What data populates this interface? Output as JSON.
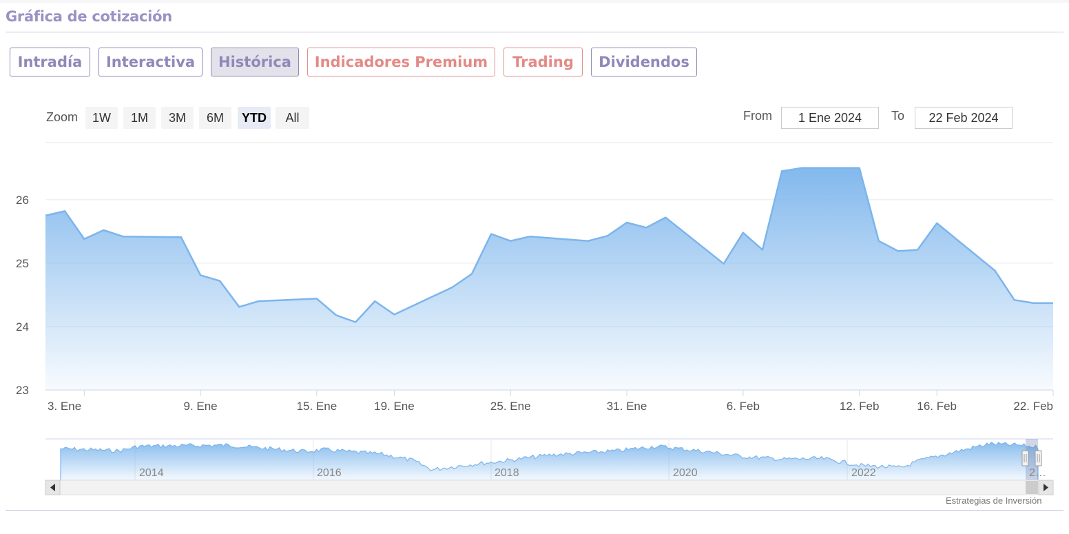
{
  "header": {
    "title": "Gráfica de cotización"
  },
  "tabs": [
    {
      "label": "Intradía",
      "color": "purple",
      "active": false
    },
    {
      "label": "Interactiva",
      "color": "purple",
      "active": false
    },
    {
      "label": "Histórica",
      "color": "purple",
      "active": true
    },
    {
      "label": "Indicadores Premium",
      "color": "red",
      "active": false
    },
    {
      "label": "Trading",
      "color": "red",
      "active": false
    },
    {
      "label": "Dividendos",
      "color": "purple",
      "active": false
    }
  ],
  "range_selector": {
    "zoom_label": "Zoom",
    "buttons": [
      "1W",
      "1M",
      "3M",
      "6M",
      "YTD",
      "All"
    ],
    "selected": "YTD",
    "from_label": "From",
    "from_value": "1 Ene 2024",
    "to_label": "To",
    "to_value": "22 Feb 2024"
  },
  "colors": {
    "series": "#7cb5ec",
    "accent_purple": "#8f88b9",
    "accent_red": "#e38a86"
  },
  "chart_data": {
    "type": "area",
    "ylim": [
      23,
      26.9
    ],
    "yticks": [
      23,
      24,
      25,
      26
    ],
    "xlim": [
      "2024-01-01",
      "2024-02-22"
    ],
    "xticks": [
      {
        "date": "2024-01-03",
        "label": "3. Ene"
      },
      {
        "date": "2024-01-09",
        "label": "9. Ene"
      },
      {
        "date": "2024-01-15",
        "label": "15. Ene"
      },
      {
        "date": "2024-01-19",
        "label": "19. Ene"
      },
      {
        "date": "2024-01-25",
        "label": "25. Ene"
      },
      {
        "date": "2024-01-31",
        "label": "31. Ene"
      },
      {
        "date": "2024-02-06",
        "label": "6. Feb"
      },
      {
        "date": "2024-02-12",
        "label": "12. Feb"
      },
      {
        "date": "2024-02-16",
        "label": "16. Feb"
      },
      {
        "date": "2024-02-22",
        "label": "22. Feb"
      }
    ],
    "grid": true,
    "x": [
      "2024-01-01",
      "2024-01-02",
      "2024-01-03",
      "2024-01-04",
      "2024-01-05",
      "2024-01-08",
      "2024-01-09",
      "2024-01-10",
      "2024-01-11",
      "2024-01-12",
      "2024-01-15",
      "2024-01-16",
      "2024-01-17",
      "2024-01-18",
      "2024-01-19",
      "2024-01-22",
      "2024-01-23",
      "2024-01-24",
      "2024-01-25",
      "2024-01-26",
      "2024-01-29",
      "2024-01-30",
      "2024-01-31",
      "2024-02-01",
      "2024-02-02",
      "2024-02-05",
      "2024-02-06",
      "2024-02-07",
      "2024-02-08",
      "2024-02-09",
      "2024-02-12",
      "2024-02-13",
      "2024-02-14",
      "2024-02-15",
      "2024-02-16",
      "2024-02-19",
      "2024-02-20",
      "2024-02-21",
      "2024-02-22"
    ],
    "y": [
      25.75,
      25.82,
      25.38,
      25.52,
      25.42,
      25.41,
      24.81,
      24.72,
      24.31,
      24.4,
      24.44,
      24.18,
      24.07,
      24.4,
      24.19,
      24.62,
      24.83,
      25.46,
      25.35,
      25.42,
      25.35,
      25.43,
      25.64,
      25.56,
      25.72,
      24.99,
      25.48,
      25.21,
      26.45,
      26.5,
      26.5,
      25.35,
      25.19,
      25.21,
      25.63,
      24.88,
      24.42,
      24.37,
      24.37
    ]
  },
  "navigator": {
    "year_labels": [
      "2014",
      "2016",
      "2018",
      "2020",
      "2022",
      "2…"
    ],
    "credit": "Estrategias de Inversión"
  }
}
